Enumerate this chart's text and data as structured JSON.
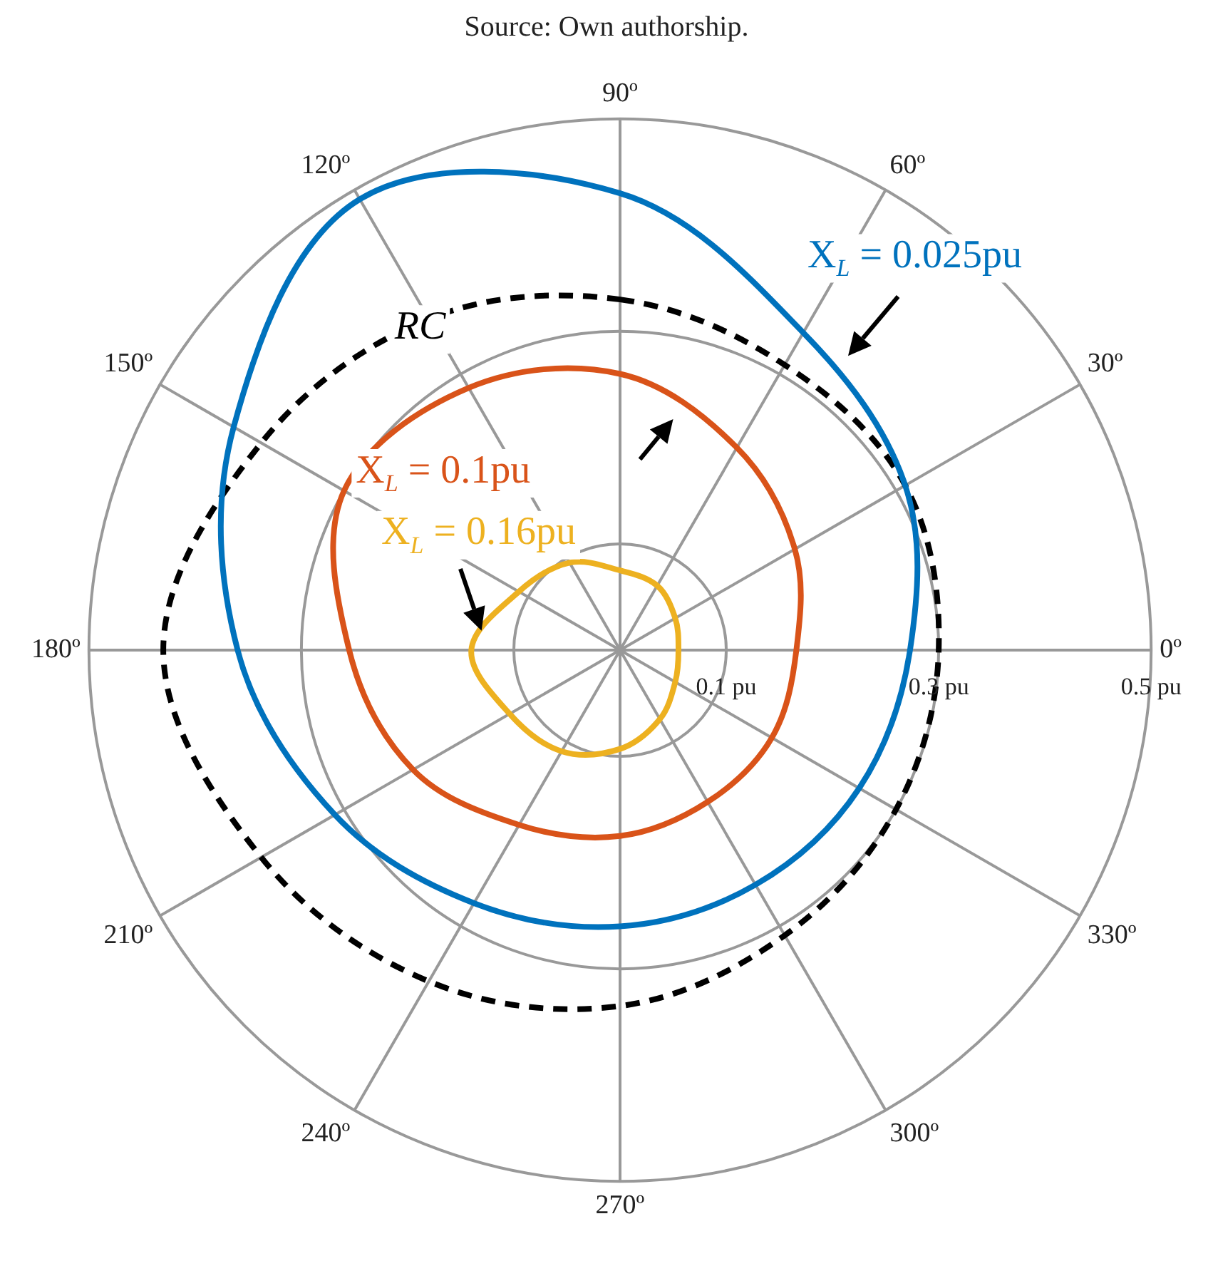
{
  "chart_data": {
    "type": "radar",
    "annotations": [
      "Source: Own authorship."
    ],
    "categories": [
      "90º",
      "60º",
      "30º",
      "0º",
      "330º",
      "300º",
      "270º",
      "240º",
      "210º",
      "180º",
      "150º",
      "120º"
    ],
    "ylim": [
      0,
      0.5
    ],
    "yticks": [
      {
        "value": 0.1,
        "label": "0.1 pu"
      },
      {
        "value": 0.3,
        "label": "0.3 pu"
      },
      {
        "value": 0.5,
        "label": "0.5 pu"
      }
    ],
    "grid": true,
    "marker": "none",
    "legend": false,
    "series": [
      {
        "name": "X$_{L}$ = 0.025pu",
        "color": "#0072bd",
        "values": [
          0.43,
          0.345,
          0.31,
          0.273,
          0.26,
          0.255,
          0.26,
          0.275,
          0.31,
          0.36,
          0.42,
          0.49
        ]
      },
      {
        "name": "RC",
        "color": "#000000",
        "line_style": "dashed",
        "values": [
          0.33,
          0.31,
          0.31,
          0.3,
          0.3,
          0.31,
          0.335,
          0.36,
          0.39,
          0.43,
          0.39,
          0.36
        ]
      },
      {
        "name": "X$_{L}$ = 0.1pu",
        "color": "#d95319",
        "values": [
          0.26,
          0.22,
          0.19,
          0.166,
          0.165,
          0.165,
          0.175,
          0.19,
          0.225,
          0.255,
          0.3,
          0.285
        ]
      },
      {
        "name": "X$_{L}$ = 0.16pu",
        "color": "#edb120",
        "values": [
          0.075,
          0.07,
          0.06,
          0.055,
          0.06,
          0.075,
          0.093,
          0.11,
          0.12,
          0.14,
          0.11,
          0.095
        ]
      }
    ]
  }
}
